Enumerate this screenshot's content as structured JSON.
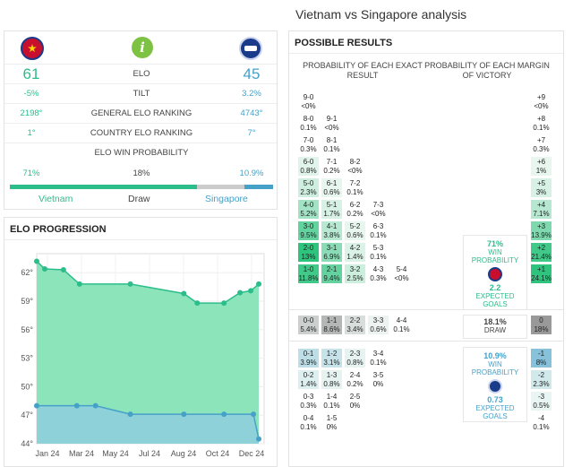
{
  "title": "Vietnam vs Singapore analysis",
  "teams": {
    "home": "Vietnam",
    "away": "Singapore",
    "draw": "Draw"
  },
  "colors": {
    "home": "#2bbd8a",
    "away": "#46a1c9",
    "draw": "#cccccc",
    "positive": "#2bbd8a"
  },
  "elo": {
    "rows": [
      {
        "label": "ELO",
        "home": "61",
        "away": "45"
      },
      {
        "label": "TILT",
        "home": "-5%",
        "away": "3.2%"
      },
      {
        "label": "GENERAL ELO RANKING",
        "home": "2198°",
        "away": "4743°"
      },
      {
        "label": "COUNTRY ELO RANKING",
        "home": "1°",
        "away": "7°"
      }
    ],
    "win_prob_label": "ELO WIN PROBABILITY",
    "probabilities": {
      "home": "71%",
      "draw": "18%",
      "away": "10.9%"
    },
    "probability_values": {
      "home": 0.71,
      "draw": 0.18,
      "away": 0.109
    }
  },
  "icons": {
    "home_crest": "vietnam-crest-icon",
    "info": "info-icon",
    "away_crest": "singapore-crest-icon"
  },
  "progression": {
    "title": "ELO PROGRESSION"
  },
  "chart_data": {
    "type": "area",
    "title": "ELO PROGRESSION",
    "x_ticks": [
      "Jan 24",
      "Mar 24",
      "May 24",
      "Jul 24",
      "Aug 24",
      "Oct 24",
      "Dec 24"
    ],
    "y_ticks": [
      "44°",
      "47°",
      "50°",
      "53°",
      "56°",
      "59°",
      "62°"
    ],
    "ylim": [
      44,
      64
    ],
    "series": [
      {
        "name": "Vietnam",
        "points": [
          [
            0,
            63.2
          ],
          [
            0.3,
            62.4
          ],
          [
            1.0,
            62.3
          ],
          [
            1.6,
            60.8
          ],
          [
            3.5,
            60.8
          ],
          [
            5.5,
            59.8
          ],
          [
            6.0,
            58.8
          ],
          [
            7.0,
            58.8
          ],
          [
            7.6,
            59.9
          ],
          [
            8.0,
            60.1
          ],
          [
            8.3,
            60.8
          ]
        ]
      },
      {
        "name": "Singapore",
        "points": [
          [
            0,
            48.0
          ],
          [
            1.5,
            48.0
          ],
          [
            2.2,
            48.0
          ],
          [
            3.5,
            47.1
          ],
          [
            5.5,
            47.1
          ],
          [
            7.0,
            47.1
          ],
          [
            8.1,
            47.1
          ],
          [
            8.3,
            44.5
          ]
        ]
      }
    ]
  },
  "results": {
    "title": "POSSIBLE RESULTS",
    "col_exact": "PROBABILITY OF EACH EXACT RESULT",
    "col_margin": "PROBABILITY OF EACH MARGIN OF VICTORY",
    "home_wins": [
      {
        "score": "9-0",
        "p": "<0%",
        "row": 0,
        "col": 0,
        "v": 0
      },
      {
        "score": "8-0",
        "p": "0.1%",
        "row": 1,
        "col": 0,
        "v": 0
      },
      {
        "score": "9-1",
        "p": "<0%",
        "row": 1,
        "col": 1,
        "v": 0
      },
      {
        "score": "7-0",
        "p": "0.3%",
        "row": 2,
        "col": 0,
        "v": 0
      },
      {
        "score": "8-1",
        "p": "0.1%",
        "row": 2,
        "col": 1,
        "v": 0
      },
      {
        "score": "6-0",
        "p": "0.8%",
        "row": 3,
        "col": 0,
        "v": 0.01
      },
      {
        "score": "7-1",
        "p": "0.2%",
        "row": 3,
        "col": 1,
        "v": 0
      },
      {
        "score": "8-2",
        "p": "<0%",
        "row": 3,
        "col": 2,
        "v": 0
      },
      {
        "score": "5-0",
        "p": "2.3%",
        "row": 4,
        "col": 0,
        "v": 0.023
      },
      {
        "score": "6-1",
        "p": "0.6%",
        "row": 4,
        "col": 1,
        "v": 0.006
      },
      {
        "score": "7-2",
        "p": "0.1%",
        "row": 4,
        "col": 2,
        "v": 0
      },
      {
        "score": "4-0",
        "p": "5.2%",
        "row": 5,
        "col": 0,
        "v": 0.052
      },
      {
        "score": "5-1",
        "p": "1.7%",
        "row": 5,
        "col": 1,
        "v": 0.017
      },
      {
        "score": "6-2",
        "p": "0.2%",
        "row": 5,
        "col": 2,
        "v": 0.002
      },
      {
        "score": "7-3",
        "p": "<0%",
        "row": 5,
        "col": 3,
        "v": 0
      },
      {
        "score": "3-0",
        "p": "9.5%",
        "row": 6,
        "col": 0,
        "v": 0.095
      },
      {
        "score": "4-1",
        "p": "3.8%",
        "row": 6,
        "col": 1,
        "v": 0.038
      },
      {
        "score": "5-2",
        "p": "0.6%",
        "row": 6,
        "col": 2,
        "v": 0.006
      },
      {
        "score": "6-3",
        "p": "0.1%",
        "row": 6,
        "col": 3,
        "v": 0
      },
      {
        "score": "2-0",
        "p": "13%",
        "row": 7,
        "col": 0,
        "v": 0.13
      },
      {
        "score": "3-1",
        "p": "6.9%",
        "row": 7,
        "col": 1,
        "v": 0.069
      },
      {
        "score": "4-2",
        "p": "1.4%",
        "row": 7,
        "col": 2,
        "v": 0.014
      },
      {
        "score": "5-3",
        "p": "0.1%",
        "row": 7,
        "col": 3,
        "v": 0
      },
      {
        "score": "1-0",
        "p": "11.8%",
        "row": 8,
        "col": 0,
        "v": 0.118
      },
      {
        "score": "2-1",
        "p": "9.4%",
        "row": 8,
        "col": 1,
        "v": 0.094
      },
      {
        "score": "3-2",
        "p": "2.5%",
        "row": 8,
        "col": 2,
        "v": 0.025
      },
      {
        "score": "4-3",
        "p": "0.3%",
        "row": 8,
        "col": 3,
        "v": 0
      },
      {
        "score": "5-4",
        "p": "<0%",
        "row": 8,
        "col": 4,
        "v": 0
      }
    ],
    "draws": [
      {
        "score": "0-0",
        "p": "5.4%",
        "col": 0,
        "v": 0.054
      },
      {
        "score": "1-1",
        "p": "8.6%",
        "col": 1,
        "v": 0.086
      },
      {
        "score": "2-2",
        "p": "3.4%",
        "col": 2,
        "v": 0.034
      },
      {
        "score": "3-3",
        "p": "0.6%",
        "col": 3,
        "v": 0.006
      },
      {
        "score": "4-4",
        "p": "0.1%",
        "col": 4,
        "v": 0
      }
    ],
    "away_wins": [
      {
        "score": "0-1",
        "p": "3.9%",
        "row": 0,
        "col": 0,
        "v": 0.039
      },
      {
        "score": "1-2",
        "p": "3.1%",
        "row": 0,
        "col": 1,
        "v": 0.031
      },
      {
        "score": "2-3",
        "p": "0.8%",
        "row": 0,
        "col": 2,
        "v": 0.008
      },
      {
        "score": "3-4",
        "p": "0.1%",
        "row": 0,
        "col": 3,
        "v": 0
      },
      {
        "score": "0-2",
        "p": "1.4%",
        "row": 1,
        "col": 0,
        "v": 0.014
      },
      {
        "score": "1-3",
        "p": "0.8%",
        "row": 1,
        "col": 1,
        "v": 0.008
      },
      {
        "score": "2-4",
        "p": "0.2%",
        "row": 1,
        "col": 2,
        "v": 0
      },
      {
        "score": "3-5",
        "p": "0%",
        "row": 1,
        "col": 3,
        "v": 0
      },
      {
        "score": "0-3",
        "p": "0.3%",
        "row": 2,
        "col": 0,
        "v": 0
      },
      {
        "score": "1-4",
        "p": "0.1%",
        "row": 2,
        "col": 1,
        "v": 0
      },
      {
        "score": "2-5",
        "p": "0%",
        "row": 2,
        "col": 2,
        "v": 0
      },
      {
        "score": "0-4",
        "p": "0.1%",
        "row": 3,
        "col": 0,
        "v": 0
      },
      {
        "score": "1-5",
        "p": "0%",
        "row": 3,
        "col": 1,
        "v": 0
      }
    ],
    "margins_home": [
      {
        "m": "+9",
        "p": "<0%",
        "v": 0
      },
      {
        "m": "+8",
        "p": "0.1%",
        "v": 0
      },
      {
        "m": "+7",
        "p": "0.3%",
        "v": 0
      },
      {
        "m": "+6",
        "p": "1%",
        "v": 0.01
      },
      {
        "m": "+5",
        "p": "3%",
        "v": 0.03
      },
      {
        "m": "+4",
        "p": "7.1%",
        "v": 0.071
      },
      {
        "m": "+3",
        "p": "13.9%",
        "v": 0.139
      },
      {
        "m": "+2",
        "p": "21.4%",
        "v": 0.214
      },
      {
        "m": "+1",
        "p": "24.1%",
        "v": 0.241
      }
    ],
    "margin_draw": {
      "m": "0",
      "p": "18%",
      "v": 0.18
    },
    "margins_away": [
      {
        "m": "-1",
        "p": "8%",
        "v": 0.08
      },
      {
        "m": "-2",
        "p": "2.3%",
        "v": 0.023
      },
      {
        "m": "-3",
        "p": "0.5%",
        "v": 0.005
      },
      {
        "m": "-4",
        "p": "0.1%",
        "v": 0
      }
    ],
    "summary": {
      "home": {
        "pct": "71%",
        "label": "WIN PROBABILITY",
        "goals": "2.2",
        "goals_label": "EXPECTED GOALS"
      },
      "draw": {
        "pct": "18.1%",
        "label": "DRAW"
      },
      "away": {
        "pct": "10.9%",
        "label": "WIN PROBABILITY",
        "goals": "0.73",
        "goals_label": "EXPECTED GOALS"
      }
    }
  }
}
